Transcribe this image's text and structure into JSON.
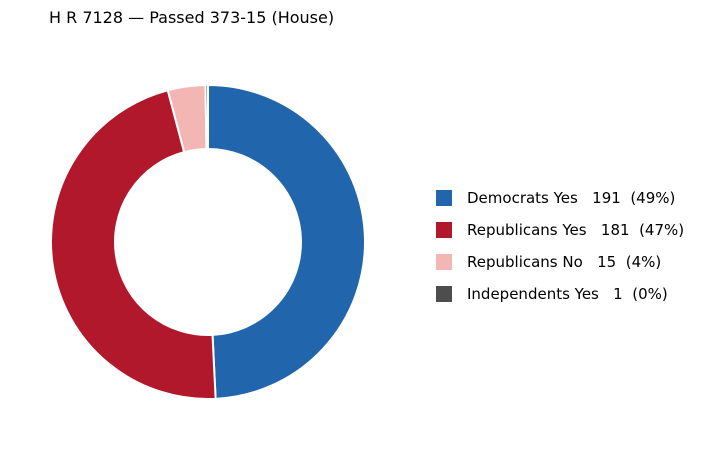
{
  "chart_data": {
    "type": "pie",
    "title": "H R 7128 — Passed 373-15 (House)",
    "slices": [
      {
        "label": "Democrats Yes",
        "value": 191,
        "percent": "49%",
        "color": "#2166ac"
      },
      {
        "label": "Republicans Yes",
        "value": 181,
        "percent": "47%",
        "color": "#b2182b"
      },
      {
        "label": "Republicans No",
        "value": 15,
        "percent": "4%",
        "color": "#f4b6b2"
      },
      {
        "label": "Independents Yes",
        "value": 1,
        "percent": "0%",
        "color": "#4d4d4d"
      }
    ],
    "legend_labels": [
      "Democrats Yes   191  (49%)",
      "Republicans Yes   181  (47%)",
      "Republicans No   15  (4%)",
      "Independents Yes   1  (0%)"
    ],
    "legend_position": "right"
  }
}
